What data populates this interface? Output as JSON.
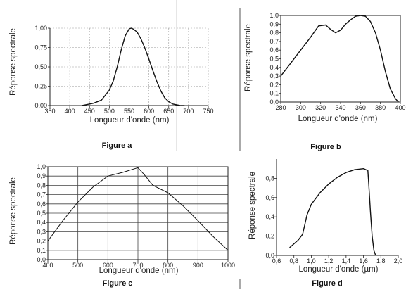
{
  "chart_data": [
    {
      "id": "a",
      "type": "line",
      "caption": "Figure a",
      "xlabel": "Longueur d'onde (nm)",
      "ylabel": "Réponse spectrale",
      "xlim": [
        350,
        750
      ],
      "ylim": [
        0,
        1
      ],
      "xticks": [
        350,
        400,
        450,
        500,
        550,
        600,
        650,
        700,
        750
      ],
      "yticks": [
        0,
        0.25,
        0.5,
        0.75,
        1
      ],
      "xtick_labels": [
        "350",
        "400",
        "450",
        "500",
        "550",
        "600",
        "650",
        "700",
        "750"
      ],
      "ytick_labels": [
        "0,00",
        "0,25",
        "0,50",
        "0,75",
        "1,00"
      ],
      "grid": true,
      "x": [
        430,
        460,
        480,
        500,
        510,
        520,
        530,
        540,
        550,
        555,
        560,
        570,
        580,
        590,
        600,
        610,
        620,
        630,
        640,
        650,
        660,
        670,
        680,
        690
      ],
      "y": [
        0.0,
        0.03,
        0.07,
        0.2,
        0.32,
        0.5,
        0.72,
        0.9,
        0.99,
        1.0,
        0.99,
        0.95,
        0.86,
        0.74,
        0.6,
        0.45,
        0.31,
        0.19,
        0.1,
        0.05,
        0.02,
        0.01,
        0.0,
        0.0
      ]
    },
    {
      "id": "b",
      "type": "line",
      "caption": "Figure b",
      "xlabel": "Longueur d'onde (nm)",
      "ylabel": "Réponse spectrale",
      "xlim": [
        280,
        400
      ],
      "ylim": [
        0,
        1
      ],
      "xticks": [
        280,
        300,
        320,
        340,
        360,
        380,
        400
      ],
      "yticks": [
        0,
        0.1,
        0.2,
        0.3,
        0.4,
        0.5,
        0.6,
        0.7,
        0.8,
        0.9,
        1
      ],
      "xtick_labels": [
        "280",
        "300",
        "320",
        "340",
        "360",
        "380",
        "400"
      ],
      "ytick_labels": [
        "0,0",
        "0,1",
        "0,2",
        "0,3",
        "0,4",
        "0,5",
        "0,6",
        "0,7",
        "0,8",
        "0,9",
        "1,0"
      ],
      "grid": false,
      "x": [
        280,
        290,
        300,
        310,
        318,
        325,
        330,
        335,
        340,
        345,
        350,
        355,
        360,
        365,
        370,
        375,
        380,
        385,
        390,
        395,
        398
      ],
      "y": [
        0.3,
        0.45,
        0.6,
        0.75,
        0.88,
        0.89,
        0.84,
        0.8,
        0.83,
        0.9,
        0.95,
        0.99,
        1.0,
        0.99,
        0.93,
        0.8,
        0.6,
        0.35,
        0.15,
        0.04,
        0.0
      ]
    },
    {
      "id": "c",
      "type": "line",
      "caption": "Figure c",
      "xlabel": "Longueur d'onde (nm)",
      "ylabel": "Réponse spectrale",
      "xlim": [
        400,
        1000
      ],
      "ylim": [
        0,
        1
      ],
      "xticks": [
        400,
        500,
        600,
        700,
        800,
        900,
        1000
      ],
      "yticks": [
        0,
        0.1,
        0.2,
        0.3,
        0.4,
        0.5,
        0.6,
        0.7,
        0.8,
        0.9,
        1
      ],
      "xtick_labels": [
        "400",
        "500",
        "600",
        "700",
        "800",
        "900",
        "1000"
      ],
      "ytick_labels": [
        "0,0",
        "0,1",
        "0,2",
        "0,3",
        "0,4",
        "0,5",
        "0,6",
        "0,7",
        "0,8",
        "0,9",
        "1,0"
      ],
      "grid": true,
      "x": [
        400,
        450,
        500,
        550,
        600,
        650,
        700,
        720,
        750,
        800,
        850,
        900,
        950,
        1000
      ],
      "y": [
        0.2,
        0.42,
        0.62,
        0.78,
        0.9,
        0.94,
        0.99,
        0.92,
        0.8,
        0.72,
        0.58,
        0.42,
        0.25,
        0.1
      ]
    },
    {
      "id": "d",
      "type": "line",
      "caption": "Figure d",
      "xlabel": "Longueur d'onde (µm)",
      "ylabel": "Réponse spectrale",
      "xlim": [
        0.6,
        2.0
      ],
      "ylim": [
        0,
        1
      ],
      "xticks": [
        0.6,
        0.8,
        1.0,
        1.2,
        1.4,
        1.6,
        1.8,
        2.0
      ],
      "yticks": [
        0,
        0.2,
        0.4,
        0.6,
        0.8
      ],
      "xtick_labels": [
        "0,6",
        "0,8",
        "1,0",
        "1,2",
        "1,4",
        "1,6",
        "1,8",
        "2,0"
      ],
      "ytick_labels": [
        "0,0",
        "0,2",
        "0,4",
        "0,6",
        "0,8"
      ],
      "grid": false,
      "x": [
        0.75,
        0.8,
        0.85,
        0.9,
        0.95,
        1.0,
        1.1,
        1.2,
        1.3,
        1.4,
        1.5,
        1.6,
        1.65,
        1.66,
        1.68,
        1.7,
        1.72,
        1.74
      ],
      "y": [
        0.08,
        0.12,
        0.16,
        0.22,
        0.42,
        0.53,
        0.65,
        0.74,
        0.81,
        0.86,
        0.89,
        0.9,
        0.88,
        0.75,
        0.45,
        0.2,
        0.05,
        0.0
      ]
    }
  ]
}
